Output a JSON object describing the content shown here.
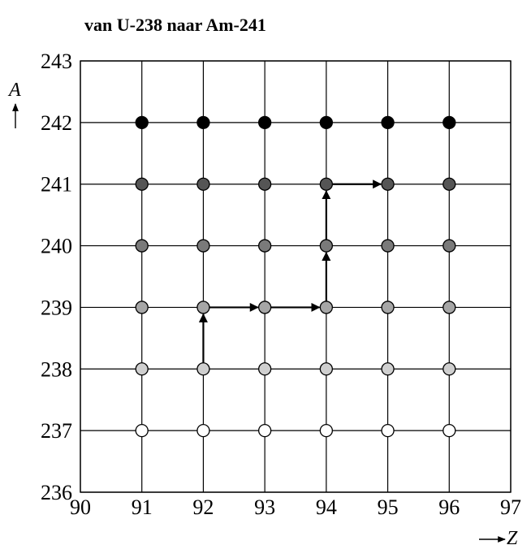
{
  "chart_data": {
    "type": "scatter",
    "title": "van U-238 naar Am-241",
    "xlabel": "Z",
    "ylabel": "A",
    "xlim": [
      90,
      97
    ],
    "ylim": [
      236,
      243
    ],
    "x_ticks": [
      90,
      91,
      92,
      93,
      94,
      95,
      96,
      97
    ],
    "y_ticks": [
      236,
      237,
      238,
      239,
      240,
      241,
      242,
      243
    ],
    "grid": true,
    "points": {
      "z_values": [
        91,
        92,
        93,
        94,
        95,
        96
      ],
      "a_values": [
        237,
        238,
        239,
        240,
        241,
        242
      ],
      "row_colors": {
        "237": "#ffffff",
        "238": "#cfcfcf",
        "239": "#a6a6a6",
        "240": "#7a7a7a",
        "241": "#555555",
        "242": "#000000"
      }
    },
    "path": [
      {
        "z": 92,
        "a": 238
      },
      {
        "z": 92,
        "a": 239
      },
      {
        "z": 93,
        "a": 239
      },
      {
        "z": 94,
        "a": 239
      },
      {
        "z": 94,
        "a": 240
      },
      {
        "z": 94,
        "a": 241
      },
      {
        "z": 95,
        "a": 241
      }
    ]
  }
}
